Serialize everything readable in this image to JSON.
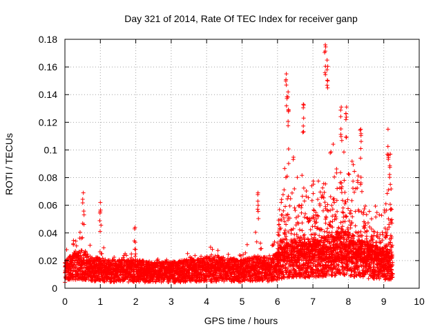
{
  "chart_data": {
    "type": "scatter",
    "title": "Day 321 of 2014, Rate Of TEC Index for receiver ganp",
    "xlabel": "GPS time / hours",
    "ylabel": "ROTI / TECUs",
    "xlim": [
      0,
      10
    ],
    "ylim": [
      0,
      0.18
    ],
    "xticks": [
      "0",
      "1",
      "2",
      "3",
      "4",
      "5",
      "6",
      "7",
      "8",
      "9",
      "10"
    ],
    "yticks": [
      "0",
      "0.02",
      "0.04",
      "0.06",
      "0.08",
      "0.1",
      "0.12",
      "0.14",
      "0.16",
      "0.18"
    ],
    "grid": true,
    "marker": "+",
    "color": "#ff0000",
    "series": [
      {
        "name": "ROTI",
        "profile_note_hours_vs_typical_max": [
          [
            0.0,
            0.012,
            0.03
          ],
          [
            0.2,
            0.016,
            0.045
          ],
          [
            0.4,
            0.018,
            0.058
          ],
          [
            0.6,
            0.016,
            0.042
          ],
          [
            0.8,
            0.014,
            0.03
          ],
          [
            1.0,
            0.014,
            0.035
          ],
          [
            1.2,
            0.013,
            0.03
          ],
          [
            1.6,
            0.013,
            0.03
          ],
          [
            2.0,
            0.013,
            0.028
          ],
          [
            2.5,
            0.012,
            0.022
          ],
          [
            3.0,
            0.012,
            0.022
          ],
          [
            3.5,
            0.013,
            0.028
          ],
          [
            4.0,
            0.014,
            0.032
          ],
          [
            4.5,
            0.014,
            0.03
          ],
          [
            5.0,
            0.013,
            0.032
          ],
          [
            5.4,
            0.015,
            0.045
          ],
          [
            5.8,
            0.014,
            0.03
          ],
          [
            6.0,
            0.016,
            0.05
          ],
          [
            6.3,
            0.022,
            0.12
          ],
          [
            6.6,
            0.022,
            0.09
          ],
          [
            7.0,
            0.022,
            0.08
          ],
          [
            7.4,
            0.024,
            0.12
          ],
          [
            7.8,
            0.026,
            0.11
          ],
          [
            8.0,
            0.026,
            0.12
          ],
          [
            8.3,
            0.022,
            0.095
          ],
          [
            8.6,
            0.02,
            0.06
          ],
          [
            9.0,
            0.018,
            0.06
          ],
          [
            9.2,
            0.016,
            0.11
          ],
          [
            9.25,
            0.015,
            0.05
          ]
        ],
        "peaks": [
          [
            0.52,
            0.069
          ],
          [
            1.0,
            0.062
          ],
          [
            1.98,
            0.044
          ],
          [
            5.45,
            0.069
          ],
          [
            6.25,
            0.155
          ],
          [
            6.3,
            0.142
          ],
          [
            6.73,
            0.133
          ],
          [
            7.35,
            0.176
          ],
          [
            7.4,
            0.165
          ],
          [
            7.8,
            0.131
          ],
          [
            7.95,
            0.131
          ],
          [
            8.35,
            0.115
          ],
          [
            9.12,
            0.115
          ],
          [
            9.18,
            0.097
          ]
        ]
      }
    ]
  }
}
